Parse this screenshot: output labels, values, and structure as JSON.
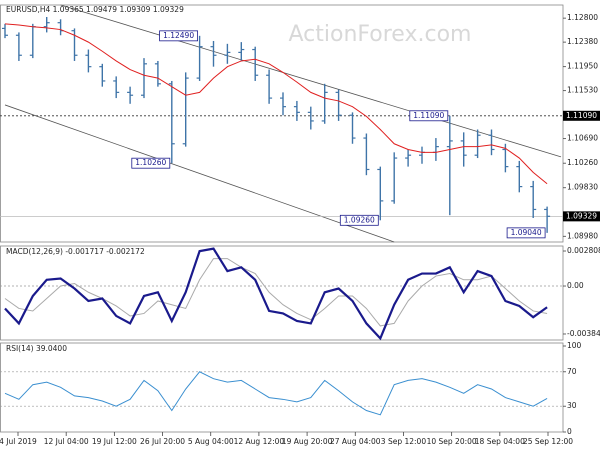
{
  "chart_data": {
    "type": "candlestick",
    "title": "EURUSD,H4 1.09365 1.09479 1.09309 1.09329",
    "watermark": "ActionForex.com",
    "color": "#3f74a8",
    "open": [
      1.1262,
      1.125,
      1.1215,
      1.1265,
      1.1272,
      1.1258,
      1.1215,
      1.1195,
      1.117,
      1.115,
      1.1145,
      1.12,
      1.1165,
      1.106,
      1.1175,
      1.123,
      1.1215,
      1.122,
      1.1225,
      1.118,
      1.114,
      1.1125,
      1.1115,
      1.11,
      1.115,
      1.111,
      1.107,
      1.1015,
      1.096,
      1.1035,
      1.104,
      1.1045,
      1.1055,
      1.1065,
      1.104,
      1.1075,
      1.105,
      1.102,
      1.0985,
      1.0945
    ],
    "high": [
      1.127,
      1.1255,
      1.127,
      1.1282,
      1.1278,
      1.1262,
      1.1225,
      1.12,
      1.1178,
      1.116,
      1.121,
      1.1205,
      1.117,
      1.1185,
      1.1249,
      1.124,
      1.1235,
      1.1238,
      1.123,
      1.119,
      1.115,
      1.1135,
      1.1125,
      1.1165,
      1.1155,
      1.1115,
      1.1078,
      1.102,
      1.1045,
      1.105,
      1.1055,
      1.107,
      1.1109,
      1.108,
      1.1085,
      1.1085,
      1.106,
      1.103,
      1.0995,
      1.095
    ],
    "low": [
      1.1245,
      1.1205,
      1.121,
      1.1255,
      1.125,
      1.1205,
      1.1185,
      1.116,
      1.114,
      1.113,
      1.114,
      1.116,
      1.1026,
      1.1055,
      1.117,
      1.1195,
      1.12,
      1.1205,
      1.117,
      1.113,
      1.111,
      1.11,
      1.1085,
      1.1095,
      1.11,
      1.106,
      1.1005,
      1.0926,
      1.0955,
      1.102,
      1.1025,
      1.103,
      1.0935,
      1.102,
      1.1035,
      1.104,
      1.101,
      1.0975,
      1.093,
      1.0904
    ],
    "close": [
      1.125,
      1.1215,
      1.1265,
      1.1272,
      1.1258,
      1.1215,
      1.1195,
      1.117,
      1.115,
      1.1145,
      1.12,
      1.1165,
      1.106,
      1.1175,
      1.123,
      1.1215,
      1.122,
      1.1225,
      1.118,
      1.114,
      1.1125,
      1.1115,
      1.11,
      1.115,
      1.111,
      1.107,
      1.1015,
      1.096,
      1.1035,
      1.104,
      1.1045,
      1.1055,
      1.1065,
      1.104,
      1.1075,
      1.105,
      1.102,
      1.0985,
      1.0945,
      1.0933
    ],
    "ylim": [
      1.0888,
      1.1303
    ],
    "yticks": [
      {
        "value": 1.128,
        "label": "1.12800"
      },
      {
        "value": 1.1238,
        "label": "1.12380"
      },
      {
        "value": 1.1195,
        "label": "1.11950"
      },
      {
        "value": 1.1153,
        "label": "1.11530"
      },
      {
        "value": 1.1069,
        "label": "1.10690"
      },
      {
        "value": 1.1026,
        "label": "1.10260"
      },
      {
        "value": 1.0983,
        "label": "1.09830"
      },
      {
        "value": 1.0898,
        "label": "1.08980"
      }
    ],
    "ma": {
      "color": "#e02020",
      "values": [
        1.127,
        1.1268,
        1.1265,
        1.1263,
        1.126,
        1.125,
        1.1238,
        1.1222,
        1.1205,
        1.119,
        1.118,
        1.1175,
        1.116,
        1.1145,
        1.115,
        1.1175,
        1.1195,
        1.1205,
        1.1208,
        1.12,
        1.1185,
        1.1168,
        1.115,
        1.114,
        1.1135,
        1.1125,
        1.1108,
        1.1085,
        1.106,
        1.105,
        1.1045,
        1.1045,
        1.105,
        1.1055,
        1.1055,
        1.1058,
        1.1052,
        1.1035,
        1.101,
        1.099
      ]
    },
    "channels": [
      {
        "x": [
          4,
          40
        ],
        "y": [
          1.1303,
          1.1037
        ]
      },
      {
        "x": [
          0,
          28
        ],
        "y": [
          1.1128,
          1.0888
        ]
      }
    ],
    "level": {
      "value": 1.1109,
      "label": "1.11090"
    },
    "last": {
      "value": 1.09329,
      "label": "1.09329"
    },
    "annotations": [
      {
        "index": 14,
        "value": 1.1249,
        "label": "1.12490"
      },
      {
        "index": 12,
        "value": 1.1026,
        "label": "1.10260"
      },
      {
        "index": 27,
        "value": 1.0926,
        "label": "1.09260"
      },
      {
        "index": 32,
        "value": 1.1109,
        "label": "1.11090"
      },
      {
        "index": 39,
        "value": 1.0904,
        "label": "1.09040"
      }
    ],
    "xlabels": [
      "4 Jul 2019",
      "12 Jul 04:00",
      "19 Jul 12:00",
      "26 Jul 20:00",
      "5 Aug 04:00",
      "12 Aug 12:00",
      "19 Aug 20:00",
      "27 Aug 04:00",
      "3 Sep 12:00",
      "10 Sep 20:00",
      "18 Sep 04:00",
      "25 Sep 12:00"
    ],
    "macd": {
      "title": "MACD(12,26,9) -0.001717 -0.002172",
      "ylim": [
        -0.00433,
        0.00321
      ],
      "yticks": [
        0.002808,
        {
          "value": 0,
          "label": "0.00"
        },
        -0.003848
      ],
      "series": [
        {
          "color": "#1a1a8c",
          "values": [
            -0.0018,
            -0.003,
            -0.0008,
            0.0005,
            0.0006,
            -0.0002,
            -0.0012,
            -0.001,
            -0.0024,
            -0.003,
            -0.0008,
            -0.0005,
            -0.0028,
            -0.0005,
            0.0028,
            0.003,
            0.0012,
            0.0015,
            0.0005,
            -0.002,
            -0.0022,
            -0.0028,
            -0.003,
            -0.0005,
            -0.0002,
            -0.0012,
            -0.003,
            -0.0042,
            -0.0015,
            0.0005,
            0.001,
            0.001,
            0.0015,
            -0.0005,
            0.0012,
            0.0008,
            -0.0012,
            -0.0016,
            -0.0025,
            -0.0017
          ]
        },
        {
          "color": "#aaaaaa",
          "values": [
            -0.001,
            -0.0018,
            -0.002,
            -0.001,
            0.0,
            0.0002,
            -0.0005,
            -0.001,
            -0.0016,
            -0.0024,
            -0.0022,
            -0.0012,
            -0.0015,
            -0.0018,
            0.0005,
            0.0022,
            0.0022,
            0.0015,
            0.001,
            -0.0005,
            -0.0015,
            -0.0022,
            -0.0027,
            -0.0018,
            -0.0008,
            -0.0008,
            -0.0018,
            -0.0032,
            -0.003,
            -0.0012,
            0.0,
            0.0008,
            0.001,
            0.0005,
            0.0005,
            0.0008,
            -0.0002,
            -0.0012,
            -0.002,
            -0.0022
          ]
        }
      ]
    },
    "rsi": {
      "title": "RSI(14) 39.0400",
      "ylim": [
        0,
        100
      ],
      "yticks": [
        100,
        70,
        30,
        0
      ],
      "color": "#3a8fd0",
      "values": [
        45,
        38,
        55,
        58,
        52,
        42,
        40,
        36,
        30,
        38,
        60,
        48,
        25,
        50,
        70,
        62,
        58,
        60,
        50,
        40,
        38,
        35,
        40,
        60,
        48,
        35,
        25,
        20,
        55,
        60,
        62,
        58,
        52,
        45,
        55,
        50,
        40,
        35,
        30,
        39.04
      ]
    }
  }
}
